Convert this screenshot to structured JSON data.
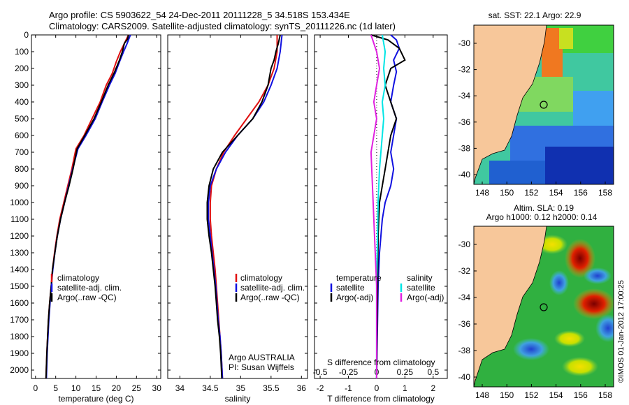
{
  "header": {
    "line1": "Argo profile: CS 5903622_54 24-Dec-2011 20111228_5 34.518S 153.434E",
    "line2": "Climatology: CARS2009. Satellite-adjusted climatology: synTS_20111226.nc (1d later)"
  },
  "colors": {
    "clim": "#e01010",
    "sat": "#1010e0",
    "argo": "#000000",
    "cyan": "#00e5e5",
    "magenta": "#e020e0",
    "land": "#f7c79a"
  },
  "y_axis": {
    "ticks": [
      0,
      100,
      200,
      300,
      400,
      500,
      600,
      700,
      800,
      900,
      1000,
      1100,
      1200,
      1300,
      1400,
      1500,
      1600,
      1700,
      1800,
      1900,
      2000
    ],
    "range": [
      0,
      2050
    ]
  },
  "chart_data": [
    {
      "type": "line",
      "id": "temperature",
      "xlabel": "temperature (deg C)",
      "xlim": [
        -1,
        31
      ],
      "xticks": [
        0,
        5,
        10,
        15,
        20,
        25,
        30
      ],
      "legend": [
        "climatology",
        "satellite-adj. clim.",
        "Argo(..raw -QC)"
      ],
      "series": [
        {
          "color": "clim",
          "points": [
            [
              23,
              0
            ],
            [
              22,
              50
            ],
            [
              21,
              100
            ],
            [
              20,
              160
            ],
            [
              19,
              230
            ],
            [
              17.5,
              300
            ],
            [
              16,
              400
            ],
            [
              14,
              500
            ],
            [
              12,
              600
            ],
            [
              10,
              680
            ],
            [
              9,
              800
            ],
            [
              8,
              900
            ],
            [
              7,
              1000
            ],
            [
              6,
              1100
            ],
            [
              5.3,
              1200
            ],
            [
              4.7,
              1300
            ],
            [
              4.2,
              1400
            ],
            [
              3.9,
              1500
            ],
            [
              3.5,
              1600
            ],
            [
              3.2,
              1700
            ],
            [
              3,
              1800
            ],
            [
              2.8,
              1900
            ],
            [
              2.6,
              2050
            ]
          ]
        },
        {
          "color": "sat",
          "points": [
            [
              23.5,
              0
            ],
            [
              22.7,
              50
            ],
            [
              21.8,
              100
            ],
            [
              20.8,
              160
            ],
            [
              19.7,
              230
            ],
            [
              18.3,
              300
            ],
            [
              16.5,
              400
            ],
            [
              14.8,
              500
            ],
            [
              12.5,
              600
            ],
            [
              10.5,
              680
            ],
            [
              9.2,
              800
            ],
            [
              8.2,
              900
            ],
            [
              7.2,
              1000
            ],
            [
              6.2,
              1100
            ],
            [
              5.4,
              1200
            ],
            [
              4.8,
              1300
            ],
            [
              4.3,
              1400
            ],
            [
              3.9,
              1500
            ],
            [
              3.6,
              1600
            ],
            [
              3.3,
              1700
            ],
            [
              3.1,
              1800
            ],
            [
              2.9,
              1900
            ],
            [
              2.7,
              2050
            ]
          ]
        },
        {
          "color": "argo",
          "points": [
            [
              23,
              0
            ],
            [
              22.8,
              25
            ],
            [
              22,
              50
            ],
            [
              21.5,
              100
            ],
            [
              20.8,
              150
            ],
            [
              19.6,
              220
            ],
            [
              18,
              300
            ],
            [
              16.3,
              400
            ],
            [
              14.5,
              500
            ],
            [
              12.2,
              600
            ],
            [
              10.3,
              680
            ],
            [
              9.3,
              800
            ],
            [
              8.3,
              900
            ],
            [
              7.2,
              1000
            ],
            [
              6.2,
              1100
            ],
            [
              5.4,
              1200
            ],
            [
              4.8,
              1300
            ],
            [
              4.2,
              1400
            ],
            [
              3.9,
              1500
            ],
            [
              3.5,
              1600
            ],
            [
              3.2,
              1700
            ],
            [
              3,
              1800
            ],
            [
              2.8,
              1900
            ],
            [
              2.6,
              2050
            ]
          ]
        }
      ]
    },
    {
      "type": "line",
      "id": "salinity",
      "xlabel": "salinity",
      "xlim": [
        33.8,
        36.1
      ],
      "xticks": [
        34,
        34.5,
        35,
        35.5,
        36
      ],
      "legend": [
        "climatology",
        "satellite-adj. clim.",
        "Argo(..raw -QC)"
      ],
      "annotation": [
        "Argo AUSTRALIA",
        "PI: Susan Wijffels"
      ],
      "series": [
        {
          "color": "clim",
          "points": [
            [
              35.6,
              0
            ],
            [
              35.6,
              100
            ],
            [
              35.55,
              200
            ],
            [
              35.45,
              300
            ],
            [
              35.3,
              400
            ],
            [
              35.1,
              500
            ],
            [
              34.9,
              600
            ],
            [
              34.72,
              700
            ],
            [
              34.6,
              800
            ],
            [
              34.52,
              900
            ],
            [
              34.5,
              1000
            ],
            [
              34.5,
              1100
            ],
            [
              34.52,
              1200
            ],
            [
              34.55,
              1300
            ],
            [
              34.58,
              1400
            ],
            [
              34.6,
              1500
            ],
            [
              34.62,
              1600
            ],
            [
              34.64,
              1700
            ],
            [
              34.66,
              1800
            ],
            [
              34.68,
              1900
            ],
            [
              34.7,
              2050
            ]
          ]
        },
        {
          "color": "sat",
          "points": [
            [
              35.68,
              0
            ],
            [
              35.65,
              100
            ],
            [
              35.6,
              200
            ],
            [
              35.5,
              300
            ],
            [
              35.38,
              400
            ],
            [
              35.2,
              500
            ],
            [
              34.95,
              600
            ],
            [
              34.75,
              700
            ],
            [
              34.6,
              800
            ],
            [
              34.5,
              900
            ],
            [
              34.47,
              1000
            ],
            [
              34.47,
              1100
            ],
            [
              34.5,
              1200
            ],
            [
              34.53,
              1300
            ],
            [
              34.56,
              1400
            ],
            [
              34.59,
              1500
            ],
            [
              34.61,
              1600
            ],
            [
              34.63,
              1700
            ],
            [
              34.66,
              1800
            ],
            [
              34.68,
              1900
            ],
            [
              34.7,
              2050
            ]
          ]
        },
        {
          "color": "argo",
          "points": [
            [
              35.65,
              0
            ],
            [
              35.62,
              50
            ],
            [
              35.58,
              100
            ],
            [
              35.55,
              150
            ],
            [
              35.5,
              200
            ],
            [
              35.45,
              300
            ],
            [
              35.35,
              400
            ],
            [
              35.2,
              500
            ],
            [
              34.95,
              600
            ],
            [
              34.7,
              700
            ],
            [
              34.55,
              800
            ],
            [
              34.48,
              900
            ],
            [
              34.45,
              1000
            ],
            [
              34.45,
              1100
            ],
            [
              34.48,
              1200
            ],
            [
              34.52,
              1300
            ],
            [
              34.55,
              1400
            ],
            [
              34.58,
              1500
            ],
            [
              34.6,
              1600
            ],
            [
              34.62,
              1700
            ],
            [
              34.65,
              1800
            ],
            [
              34.67,
              1900
            ],
            [
              34.69,
              2050
            ]
          ]
        }
      ]
    },
    {
      "type": "line",
      "id": "difference",
      "xlabel": "T difference from climatology",
      "top_label": "S difference from climatology",
      "xlim": [
        -2.2,
        2.5
      ],
      "xticks": [
        -2,
        -1,
        0,
        1,
        2
      ],
      "s_tick_labels": [
        [
          "-0.5",
          -2
        ],
        [
          "-0.25",
          -1
        ],
        [
          "0",
          0
        ],
        [
          "0.25",
          1
        ],
        [
          "0.5",
          2
        ]
      ],
      "legend_left": {
        "title": "temperature",
        "items": [
          "satellite",
          "Argo(-adj)"
        ]
      },
      "legend_right": {
        "title": "salinity",
        "items": [
          "satellite",
          "Argo(-adj)"
        ]
      },
      "series": [
        {
          "color": "sat",
          "points": [
            [
              0.5,
              0
            ],
            [
              0.7,
              30
            ],
            [
              0.8,
              80
            ],
            [
              0.6,
              150
            ],
            [
              0.7,
              220
            ],
            [
              0.6,
              300
            ],
            [
              0.5,
              400
            ],
            [
              0.7,
              500
            ],
            [
              0.6,
              600
            ],
            [
              0.5,
              700
            ],
            [
              0.6,
              800
            ],
            [
              0.5,
              900
            ],
            [
              0.3,
              1000
            ],
            [
              0.2,
              1100
            ],
            [
              0.1,
              1300
            ],
            [
              0.05,
              1500
            ],
            [
              0,
              2050
            ]
          ]
        },
        {
          "color": "argo",
          "points": [
            [
              -0.2,
              0
            ],
            [
              0.4,
              30
            ],
            [
              0.8,
              80
            ],
            [
              1,
              150
            ],
            [
              0.5,
              200
            ],
            [
              0.3,
              300
            ],
            [
              0.5,
              400
            ],
            [
              0.7,
              500
            ],
            [
              0.5,
              600
            ],
            [
              0.4,
              700
            ],
            [
              0.3,
              800
            ],
            [
              0.2,
              900
            ],
            [
              0.1,
              1000
            ],
            [
              0.05,
              1200
            ],
            [
              0,
              2050
            ]
          ]
        },
        {
          "color": "cyan",
          "points": [
            [
              0.2,
              0
            ],
            [
              0.3,
              100
            ],
            [
              0.25,
              200
            ],
            [
              0.3,
              300
            ],
            [
              0.2,
              400
            ],
            [
              0.25,
              500
            ],
            [
              0.2,
              600
            ],
            [
              0.1,
              800
            ],
            [
              0.05,
              1000
            ],
            [
              0,
              1500
            ],
            [
              0,
              2050
            ]
          ]
        },
        {
          "color": "magenta",
          "points": [
            [
              -0.2,
              0
            ],
            [
              0,
              100
            ],
            [
              0.1,
              200
            ],
            [
              0,
              300
            ],
            [
              -0.1,
              400
            ],
            [
              0,
              500
            ],
            [
              -0.1,
              600
            ],
            [
              -0.2,
              700
            ],
            [
              -0.15,
              900
            ],
            [
              -0.1,
              1100
            ],
            [
              -0.05,
              1300
            ],
            [
              0,
              1500
            ],
            [
              0,
              2050
            ]
          ]
        }
      ]
    }
  ],
  "maps": {
    "top": {
      "title": "sat. SST: 22.1  Argo: 22.9",
      "yticks": [
        "-30",
        "-32",
        "-34",
        "-36",
        "-38",
        "-40"
      ]
    },
    "bottom": {
      "title1": "Altim. SLA: 0.19",
      "title2": "Argo h1000: 0.12 h2000: 0.14",
      "yticks": [
        "-30",
        "-32",
        "-34",
        "-36",
        "-38",
        "-40"
      ]
    },
    "xticks": [
      "148",
      "150",
      "152",
      "154",
      "156",
      "158"
    ]
  },
  "credit": "©IMOS 01-Jan-2012 17:00:25"
}
